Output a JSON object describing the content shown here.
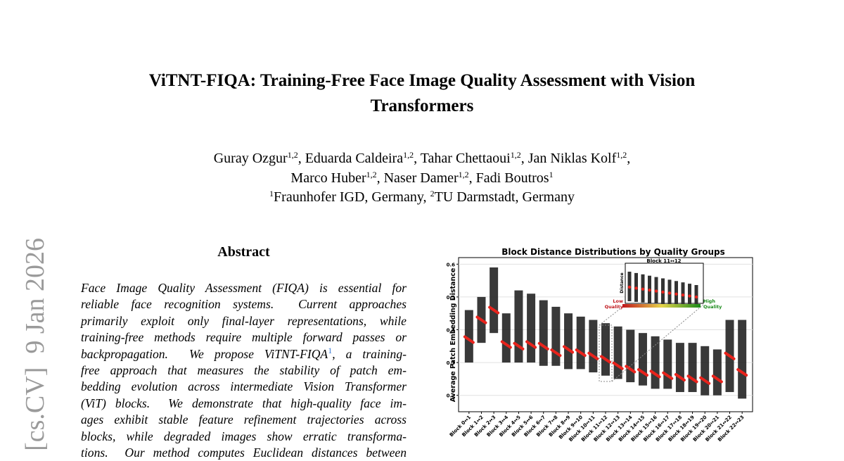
{
  "arxiv_stamp": "[cs.CV]  9 Jan 2026",
  "title_lines": [
    "ViTNT-FIQA: Training-Free Face Image Quality Assessment with Vision",
    "Transformers"
  ],
  "author_lines": [
    [
      {
        "name": "Guray Ozgur",
        "sup": "1,2",
        "sep": ","
      },
      {
        "name": "Eduarda Caldeira",
        "sup": "1,2",
        "sep": ","
      },
      {
        "name": "Tahar Chettaoui",
        "sup": "1,2",
        "sep": ","
      },
      {
        "name": "Jan Niklas Kolf",
        "sup": "1,2",
        "sep": ","
      }
    ],
    [
      {
        "name": "Marco Huber",
        "sup": "1,2",
        "sep": ","
      },
      {
        "name": "Naser Damer",
        "sup": "1,2",
        "sep": ","
      },
      {
        "name": "Fadi Boutros",
        "sup": "1"
      }
    ]
  ],
  "affiliations": [
    {
      "sup": "1",
      "text": "Fraunhofer IGD, Germany,"
    },
    {
      "sup": "2",
      "text": "TU Darmstadt, Germany"
    }
  ],
  "abstract": {
    "heading": "Abstract",
    "lines": [
      "Face Image Quality Assessment (FIQA) is essential for",
      "reliable face recognition systems.  Current approaches",
      "primarily exploit only final-layer representations, while",
      "training-free methods require multiple forward passes or",
      {
        "text": "backpropagation.  We propose ViTNT-FIQA",
        "footnote": "1",
        "rest": ", a training-"
      },
      "free approach that measures the stability of patch em-",
      "bedding evolution across intermediate Vision Transformer",
      "(ViT) blocks.  We demonstrate that high-quality face im-",
      "ages exhibit stable feature refinement trajectories across",
      "blocks, while degraded images show erratic transforma-",
      "tions.  Our method computes Euclidean distances between"
    ]
  },
  "figure": {
    "type": "box",
    "title": "Block Distance Distributions by Quality Groups",
    "y_label": "Average Patch Embedding Distance",
    "categories": [
      "Block 0↔1",
      "Block 1↔2",
      "Block 2↔3",
      "Block 3↔4",
      "Block 4↔5",
      "Block 5↔6",
      "Block 6↔7",
      "Block 7↔8",
      "Block 8↔9",
      "Block 9↔10",
      "Block 10↔11",
      "Block 11↔12",
      "Block 12↔13",
      "Block 13↔14",
      "Block 14↔15",
      "Block 15↔16",
      "Block 16↔17",
      "Block 17↔18",
      "Block 18↔19",
      "Block 19↔20",
      "Block 20↔21",
      "Block 21↔22",
      "Block 22↔23"
    ],
    "median": [
      0.37,
      0.43,
      0.46,
      0.355,
      0.35,
      0.355,
      0.35,
      0.33,
      0.34,
      0.33,
      0.32,
      0.31,
      0.29,
      0.28,
      0.27,
      0.265,
      0.26,
      0.255,
      0.25,
      0.245,
      0.25,
      0.32,
      0.27
    ],
    "low": [
      0.3,
      0.36,
      0.39,
      0.3,
      0.3,
      0.3,
      0.29,
      0.29,
      0.28,
      0.28,
      0.27,
      0.26,
      0.25,
      0.24,
      0.23,
      0.22,
      0.22,
      0.21,
      0.21,
      0.2,
      0.2,
      0.21,
      0.19
    ],
    "high": [
      0.46,
      0.5,
      0.59,
      0.45,
      0.52,
      0.51,
      0.49,
      0.47,
      0.45,
      0.44,
      0.43,
      0.42,
      0.41,
      0.4,
      0.39,
      0.38,
      0.37,
      0.36,
      0.36,
      0.35,
      0.34,
      0.43,
      0.43
    ],
    "band_color": "#1e1e1e",
    "median_color": "#e8231c",
    "ylim": [
      0.15,
      0.62
    ],
    "yticks": [
      0.2,
      0.3,
      0.4,
      0.5,
      0.6
    ],
    "grid": true,
    "inset": {
      "title": "Block 11↔12",
      "y_label": "Distance",
      "low_label": [
        "Low",
        "Quality"
      ],
      "high_label": [
        "High",
        "Quality"
      ],
      "low_color": "#c0161c",
      "high_color": "#1a8a1a"
    }
  }
}
